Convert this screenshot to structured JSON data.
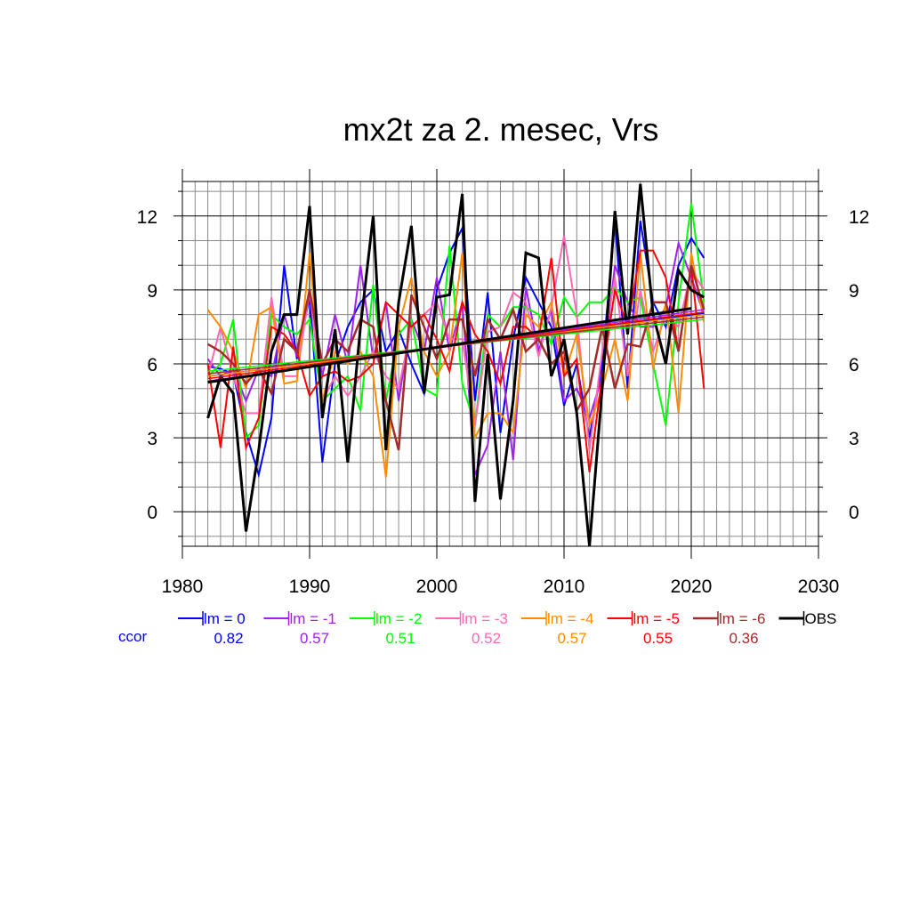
{
  "chart_data": {
    "type": "line",
    "title": "mx2t za 2. mesec, Vrs",
    "xlabel": "",
    "ylabel": "",
    "xlim": [
      1980,
      2030
    ],
    "ylim": [
      -1.4,
      13.4
    ],
    "x_ticks": [
      1980,
      1990,
      2000,
      2010,
      2020,
      2030
    ],
    "y_ticks": [
      0,
      3,
      6,
      9,
      12
    ],
    "grid": true,
    "legend_position": "bottom",
    "ccor_label": "ccor",
    "x": [
      1982,
      1983,
      1984,
      1985,
      1986,
      1987,
      1988,
      1989,
      1990,
      1991,
      1992,
      1993,
      1994,
      1995,
      1996,
      1997,
      1998,
      1999,
      2000,
      2001,
      2002,
      2003,
      2004,
      2005,
      2006,
      2007,
      2008,
      2009,
      2010,
      2011,
      2012,
      2013,
      2014,
      2015,
      2016,
      2017,
      2018,
      2019,
      2020,
      2021
    ],
    "series": [
      {
        "name": "lm = 0",
        "ccor": "0.82",
        "color": "#0000ff",
        "width": 2,
        "values": [
          5.9,
          5.8,
          5.6,
          3.2,
          1.5,
          3.8,
          10.0,
          6.2,
          8.7,
          2.0,
          6.0,
          7.5,
          8.5,
          9.0,
          6.5,
          7.4,
          6.0,
          4.8,
          9.0,
          10.5,
          11.5,
          4.5,
          8.9,
          3.2,
          7.0,
          9.5,
          8.5,
          7.5,
          4.3,
          6.0,
          3.0,
          6.0,
          11.8,
          5.0,
          11.8,
          8.5,
          7.5,
          10.0,
          11.1,
          10.3
        ],
        "trend": [
          5.5,
          8.05
        ]
      },
      {
        "name": "lm = -1",
        "ccor": "0.57",
        "color": "#a020f0",
        "width": 2,
        "values": [
          6.2,
          5.5,
          5.8,
          4.5,
          5.8,
          5.5,
          8.0,
          6.3,
          8.8,
          5.5,
          8.0,
          6.0,
          10.0,
          6.2,
          8.5,
          4.5,
          7.8,
          6.5,
          9.5,
          6.5,
          8.5,
          1.5,
          2.7,
          6.5,
          2.1,
          9.1,
          6.5,
          8.2,
          4.5,
          5.0,
          3.8,
          5.5,
          10.0,
          8.5,
          7.5,
          7.5,
          8.3,
          10.9,
          9.5,
          8.0
        ],
        "trend": [
          5.3,
          8.2
        ]
      },
      {
        "name": "lm = -2",
        "ccor": "0.51",
        "color": "#00ff00",
        "width": 2,
        "values": [
          5.5,
          6.0,
          7.8,
          3.0,
          3.5,
          8.0,
          7.5,
          7.2,
          7.8,
          4.5,
          5.0,
          5.5,
          4.1,
          9.2,
          4.5,
          7.2,
          7.8,
          5.0,
          4.7,
          10.8,
          5.2,
          3.5,
          8.0,
          7.5,
          8.3,
          8.3,
          8.0,
          6.8,
          8.7,
          7.9,
          8.5,
          8.5,
          9.1,
          8.5,
          8.7,
          6.0,
          3.5,
          8.5,
          12.5,
          8.5
        ],
        "trend": [
          5.7,
          7.8
        ]
      },
      {
        "name": "lm = -3",
        "ccor": "0.52",
        "color": "#ff69b4",
        "width": 2,
        "values": [
          5.5,
          7.5,
          5.5,
          4.0,
          4.0,
          8.7,
          5.5,
          5.5,
          9.0,
          4.5,
          5.5,
          4.7,
          5.5,
          6.5,
          5.5,
          5.0,
          7.5,
          8.0,
          8.5,
          7.0,
          7.0,
          3.5,
          7.3,
          7.5,
          8.9,
          8.5,
          6.3,
          8.3,
          11.2,
          8.0,
          2.5,
          6.5,
          9.5,
          5.5,
          9.0,
          6.5,
          8.0,
          7.5,
          9.8,
          9.0
        ],
        "trend": [
          5.6,
          7.9
        ]
      },
      {
        "name": "lm = -4",
        "ccor": "0.57",
        "color": "#ff8c00",
        "width": 2,
        "values": [
          8.2,
          7.5,
          6.5,
          5.0,
          8.0,
          8.3,
          5.2,
          5.3,
          10.5,
          4.5,
          6.5,
          6.0,
          6.5,
          5.5,
          1.4,
          7.5,
          9.5,
          6.5,
          5.5,
          6.5,
          10.5,
          3.0,
          4.0,
          4.0,
          3.2,
          8.0,
          7.5,
          8.5,
          5.5,
          7.2,
          3.5,
          5.0,
          7.0,
          4.5,
          10.5,
          5.8,
          8.5,
          4.0,
          10.5,
          7.7
        ],
        "trend": [
          5.5,
          8.0
        ]
      },
      {
        "name": "lm = -5",
        "ccor": "0.55",
        "color": "#ff0000",
        "width": 2,
        "values": [
          6.0,
          2.6,
          6.7,
          2.6,
          3.8,
          7.5,
          7.2,
          6.5,
          4.7,
          5.5,
          5.7,
          5.3,
          5.5,
          6.0,
          8.5,
          8.0,
          7.5,
          8.0,
          7.0,
          5.7,
          8.5,
          7.2,
          6.5,
          5.2,
          7.5,
          7.5,
          7.0,
          10.3,
          5.5,
          6.2,
          1.6,
          5.5,
          9.0,
          7.5,
          10.6,
          10.6,
          9.5,
          6.5,
          10.0,
          5.0
        ],
        "trend": [
          5.4,
          8.1
        ]
      },
      {
        "name": "lm = -6",
        "ccor": "0.36",
        "color": "#a52a2a",
        "width": 2.5,
        "values": [
          6.8,
          6.5,
          6.0,
          5.2,
          5.8,
          4.8,
          7.0,
          6.5,
          9.0,
          6.0,
          7.0,
          6.5,
          7.8,
          7.5,
          4.5,
          2.5,
          8.8,
          7.5,
          6.2,
          7.8,
          7.8,
          5.5,
          7.8,
          7.0,
          8.2,
          6.5,
          7.0,
          6.0,
          6.5,
          4.1,
          5.0,
          7.5,
          5.0,
          6.8,
          6.7,
          8.5,
          8.5,
          6.5,
          10.0,
          8.2
        ],
        "trend": [
          5.6,
          7.9
        ]
      },
      {
        "name": "OBS",
        "ccor": "",
        "color": "#000000",
        "width": 3,
        "values": [
          3.8,
          5.5,
          4.8,
          -0.8,
          2.5,
          6.5,
          8.0,
          8.0,
          12.4,
          3.8,
          7.4,
          2.0,
          7.5,
          12.0,
          2.5,
          8.5,
          11.6,
          4.8,
          8.7,
          8.8,
          12.9,
          0.4,
          6.4,
          0.5,
          4.5,
          10.5,
          10.3,
          5.5,
          7.0,
          4.0,
          -1.4,
          5.0,
          12.2,
          7.2,
          13.3,
          8.0,
          6.0,
          9.8,
          9.0,
          8.7
        ],
        "trend": [
          5.25,
          8.25
        ],
        "trend_x": [
          1982,
          2020
        ]
      }
    ]
  }
}
